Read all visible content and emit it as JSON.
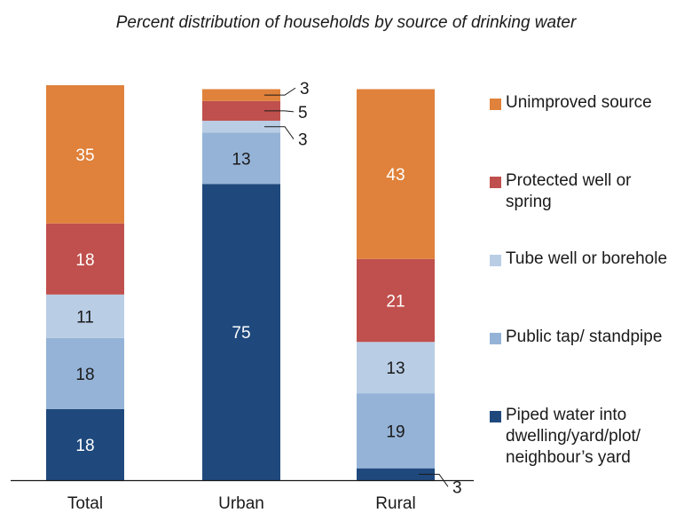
{
  "chart_data": {
    "type": "bar",
    "stacked": true,
    "title": "Percent distribution of households by source of drinking water",
    "xlabel": "",
    "ylabel": "",
    "ylim": [
      0,
      100
    ],
    "grid": false,
    "legend_position": "right",
    "categories": [
      "Total",
      "Urban",
      "Rural"
    ],
    "series": [
      {
        "name": "Piped water into dwelling/yard/plot/ neighbour’s yard",
        "color": "#1f497d",
        "values": [
          18,
          75,
          3
        ]
      },
      {
        "name": "Public tap/ standpipe",
        "color": "#95b3d7",
        "values": [
          18,
          13,
          19
        ]
      },
      {
        "name": "Tube well or borehole",
        "color": "#b9cde5",
        "values": [
          11,
          3,
          13
        ]
      },
      {
        "name": "Protected well or spring",
        "color": "#c0504d",
        "values": [
          18,
          5,
          21
        ]
      },
      {
        "name": "Unimproved source",
        "color": "#e0823b",
        "values": [
          35,
          3,
          43
        ]
      }
    ]
  }
}
